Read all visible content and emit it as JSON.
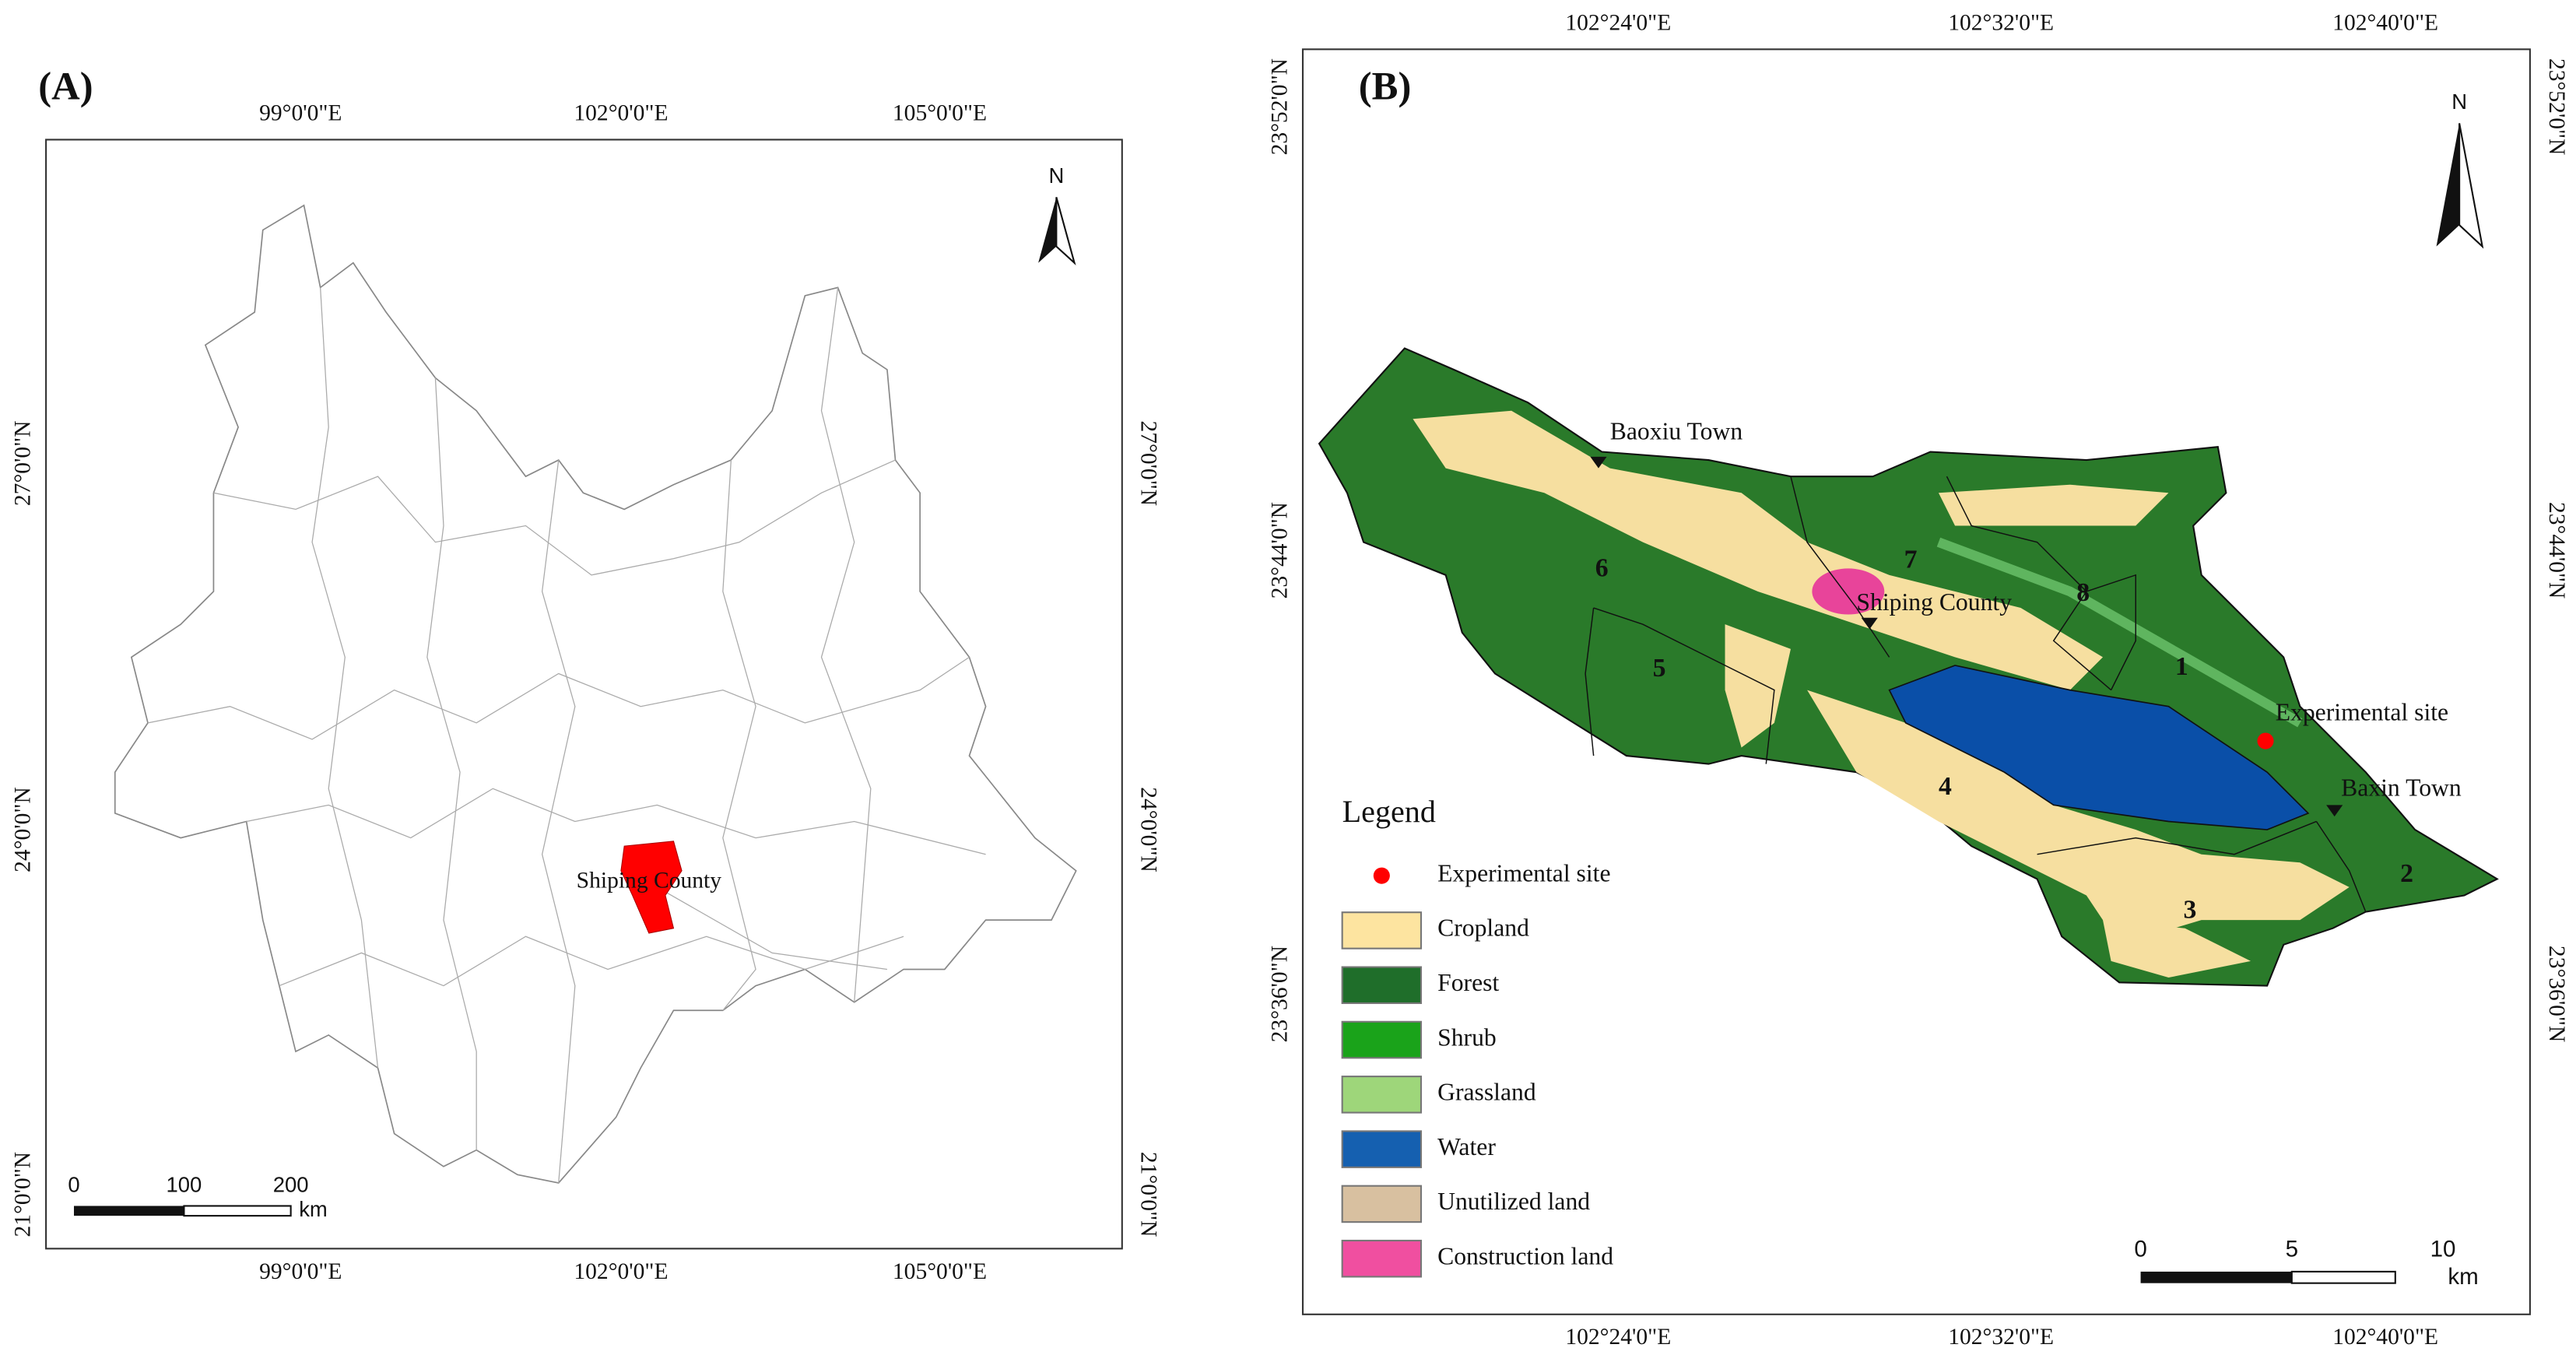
{
  "panel_a": {
    "label": "(A)",
    "lon_ticks": [
      "99°0'0\"E",
      "102°0'0\"E",
      "105°0'0\"E"
    ],
    "lat_ticks": [
      "27°0'0\"N",
      "24°0'0\"N",
      "21°0'0\"N"
    ],
    "north": "N",
    "place": "Shiping County",
    "scale_labels": [
      "0",
      "100",
      "200"
    ],
    "scale_unit": "km"
  },
  "panel_b": {
    "label": "(B)",
    "lon_ticks": [
      "102°24'0\"E",
      "102°32'0\"E",
      "102°40'0\"E"
    ],
    "lat_ticks": [
      "23°52'0\"N",
      "23°44'0\"N",
      "23°36'0\"N"
    ],
    "north": "N",
    "places": [
      "Baoxiu Town",
      "Shiping County",
      "Experimental site",
      "Baxin Town"
    ],
    "subbasins": [
      "1",
      "2",
      "3",
      "4",
      "5",
      "6",
      "7",
      "8"
    ],
    "legend": {
      "title": "Legend",
      "items": [
        "Experimental site",
        "Cropland",
        "Forest",
        "Shrub",
        "Grassland",
        "Water",
        "Unutilized land",
        "Construction land"
      ]
    },
    "scale_labels": [
      "0",
      "5",
      "10"
    ],
    "scale_unit": "km"
  }
}
